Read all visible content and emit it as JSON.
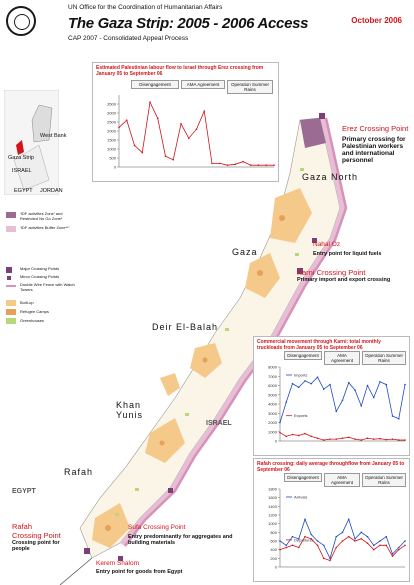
{
  "header": {
    "org": "UN Office for the Coordination of Humanitarian Affairs",
    "title": "The Gaza Strip: 2005 - 2006 Access",
    "subtitle": "CAP 2007 - Consolidated Appeal Process",
    "date": "October 2006"
  },
  "inset": {
    "labels": [
      "West Bank",
      "Gaza Strip",
      "ISRAEL",
      "EGYPT",
      "JORDAN"
    ]
  },
  "map_labels": {
    "gaza_north": "Gaza North",
    "gaza": "Gaza",
    "deir_el_balah": "Deir El-Balah",
    "khan_yunis": "Khan Yunis",
    "rafah_region": "Rafah",
    "israel": "ISRAEL",
    "egypt": "EGYPT"
  },
  "crossings": {
    "erez": {
      "name": "Erez Crossing Point",
      "desc": "Primary crossing for Palestinian workers and international personnel"
    },
    "nahal_oz": {
      "name": "Nahal Oz",
      "desc": "Entry point for liquid fuels"
    },
    "karni": {
      "name": "Karni Crossing Point",
      "desc": "Primary import and export crossing"
    },
    "rafah": {
      "name": "Rafah Crossing Point",
      "desc": "Crossing point for people"
    },
    "sufa": {
      "name": "Sufa Crossing Point",
      "desc": "Entry predominantly for aggregates and building materials"
    },
    "kerem_shalom": {
      "name": "Kerem Shalom",
      "desc": "Entry point for goods from Egypt"
    }
  },
  "phases": [
    "Disengagement",
    "AMA Agreement",
    "Operation Summer Rains"
  ],
  "legend": {
    "items": [
      "'IDF activities Zone' and Restricted No Go Zone*",
      "'IDF activities Buffer Zone**'",
      "Major Crossing Points",
      "Minor Crossing Points",
      "Double Wire Fence with Watch Towers",
      "Built-up",
      "Refugee Camps",
      "Greenhouses"
    ]
  },
  "colors": {
    "red": "#d4141b",
    "builtup": "#f5c98a",
    "refugee": "#e3a15a",
    "greenhouse": "#b8d67a",
    "zone": "#9b6b94",
    "buffer": "#e7bfd5",
    "fence": "#d990b9",
    "blue": "#1f4bbf"
  },
  "chart_data": [
    {
      "type": "line",
      "title": "Estimated Palestinian labour flow to Israel through Erez crossing from January 05 to September 06",
      "ylim": [
        0,
        4000
      ],
      "yticks": [
        0,
        500,
        1000,
        1500,
        2000,
        2500,
        3000,
        3500
      ],
      "series": [
        {
          "values": [
            2200,
            2600,
            1200,
            800,
            3600,
            2700,
            600,
            400,
            2400,
            1600,
            2100,
            3100,
            200,
            200,
            100,
            150,
            300,
            100,
            100,
            100,
            100
          ]
        }
      ]
    },
    {
      "type": "line",
      "title": "Commercial movement through Karni: total monthly truckloads from January 05 to September 06",
      "ylim": [
        0,
        8000
      ],
      "yticks": [
        0,
        1000,
        2000,
        3000,
        4000,
        5000,
        6000,
        7000,
        8000
      ],
      "series": [
        {
          "name": "Imports",
          "values": [
            2000,
            4200,
            6200,
            5800,
            6500,
            6200,
            6900,
            5600,
            6100,
            3200,
            4400,
            6300,
            5500,
            3800,
            6000,
            4700,
            6400,
            6100,
            2700,
            2400,
            6100
          ]
        },
        {
          "name": "Exports",
          "values": [
            900,
            500,
            700,
            600,
            800,
            500,
            300,
            100,
            200,
            200,
            300,
            400,
            200,
            100,
            300,
            200,
            250,
            150,
            200,
            100,
            100
          ]
        }
      ]
    },
    {
      "type": "line",
      "title": "Rafah crossing: daily average throughflow from January 05 to September 06",
      "ylim": [
        0,
        1800
      ],
      "yticks": [
        0,
        200,
        400,
        600,
        800,
        1000,
        1200,
        1400,
        1600,
        1800
      ],
      "series": [
        {
          "name": "Arrivals",
          "values": [
            600,
            500,
            700,
            650,
            1100,
            750,
            600,
            500,
            200,
            700,
            800,
            1100,
            650,
            800,
            700,
            500,
            600,
            700,
            300,
            450,
            600
          ]
        },
        {
          "name": "Departures",
          "values": [
            400,
            450,
            500,
            450,
            700,
            650,
            500,
            200,
            150,
            450,
            600,
            700,
            600,
            650,
            550,
            400,
            500,
            500,
            250,
            400,
            500
          ]
        }
      ]
    }
  ]
}
